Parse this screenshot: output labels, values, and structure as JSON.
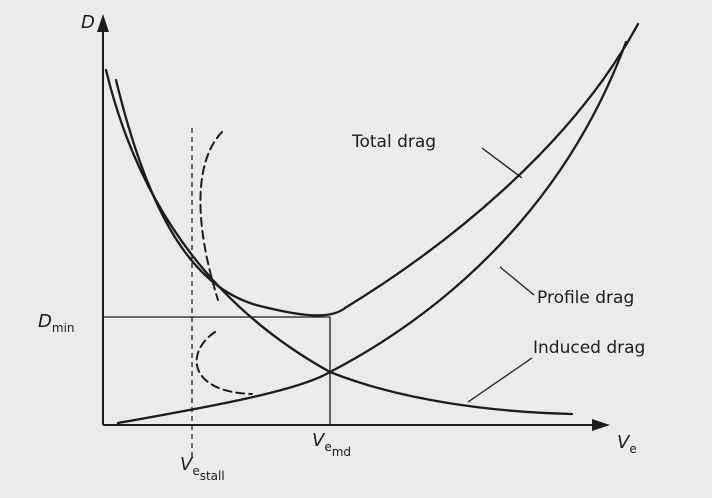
{
  "chart_data": {
    "type": "line",
    "title": "",
    "xlabel": {
      "symbol": "V",
      "subscript": "e"
    },
    "ylabel": {
      "symbol": "D"
    },
    "x_ticks": [
      {
        "symbol": "V",
        "subscript_1": "e",
        "subscript_2": "stall"
      },
      {
        "symbol": "V",
        "subscript_1": "e",
        "subscript_2": "md"
      }
    ],
    "y_ticks": [
      {
        "symbol": "D",
        "subscript": "min"
      }
    ],
    "series": [
      {
        "name": "Total drag"
      },
      {
        "name": "Profile drag"
      },
      {
        "name": "Induced drag"
      }
    ],
    "grid": false,
    "legend": "direct labels with leader lines"
  }
}
